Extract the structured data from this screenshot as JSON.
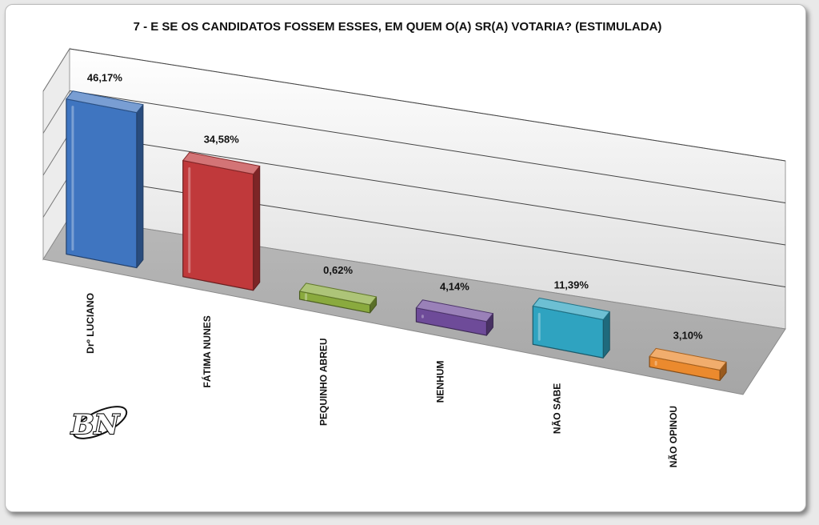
{
  "chart_data": {
    "type": "bar",
    "title": "7 - E SE OS CANDIDATOS FOSSEM ESSES, EM QUEM O(A) SR(A) VOTARIA? (ESTIMULADA)",
    "categories": [
      "Drº LUCIANO",
      "FÁTIMA NUNES",
      "PEQUINHO ABREU",
      "NENHUM",
      "NÃO SABE",
      "NÃO OPINOU"
    ],
    "values": [
      46.17,
      34.58,
      0.62,
      4.14,
      11.39,
      3.1
    ],
    "value_labels": [
      "46,17%",
      "34,58%",
      "0,62%",
      "4,14%",
      "11,39%",
      "3,10%"
    ],
    "colors": [
      "#3f75c0",
      "#c0393b",
      "#8aaa3e",
      "#6e4b99",
      "#2fa3c0",
      "#eb8a2e"
    ],
    "ylim": [
      0,
      50
    ],
    "style": "3d",
    "grid": true,
    "legend": "none"
  },
  "logo": {
    "text": "BN"
  }
}
